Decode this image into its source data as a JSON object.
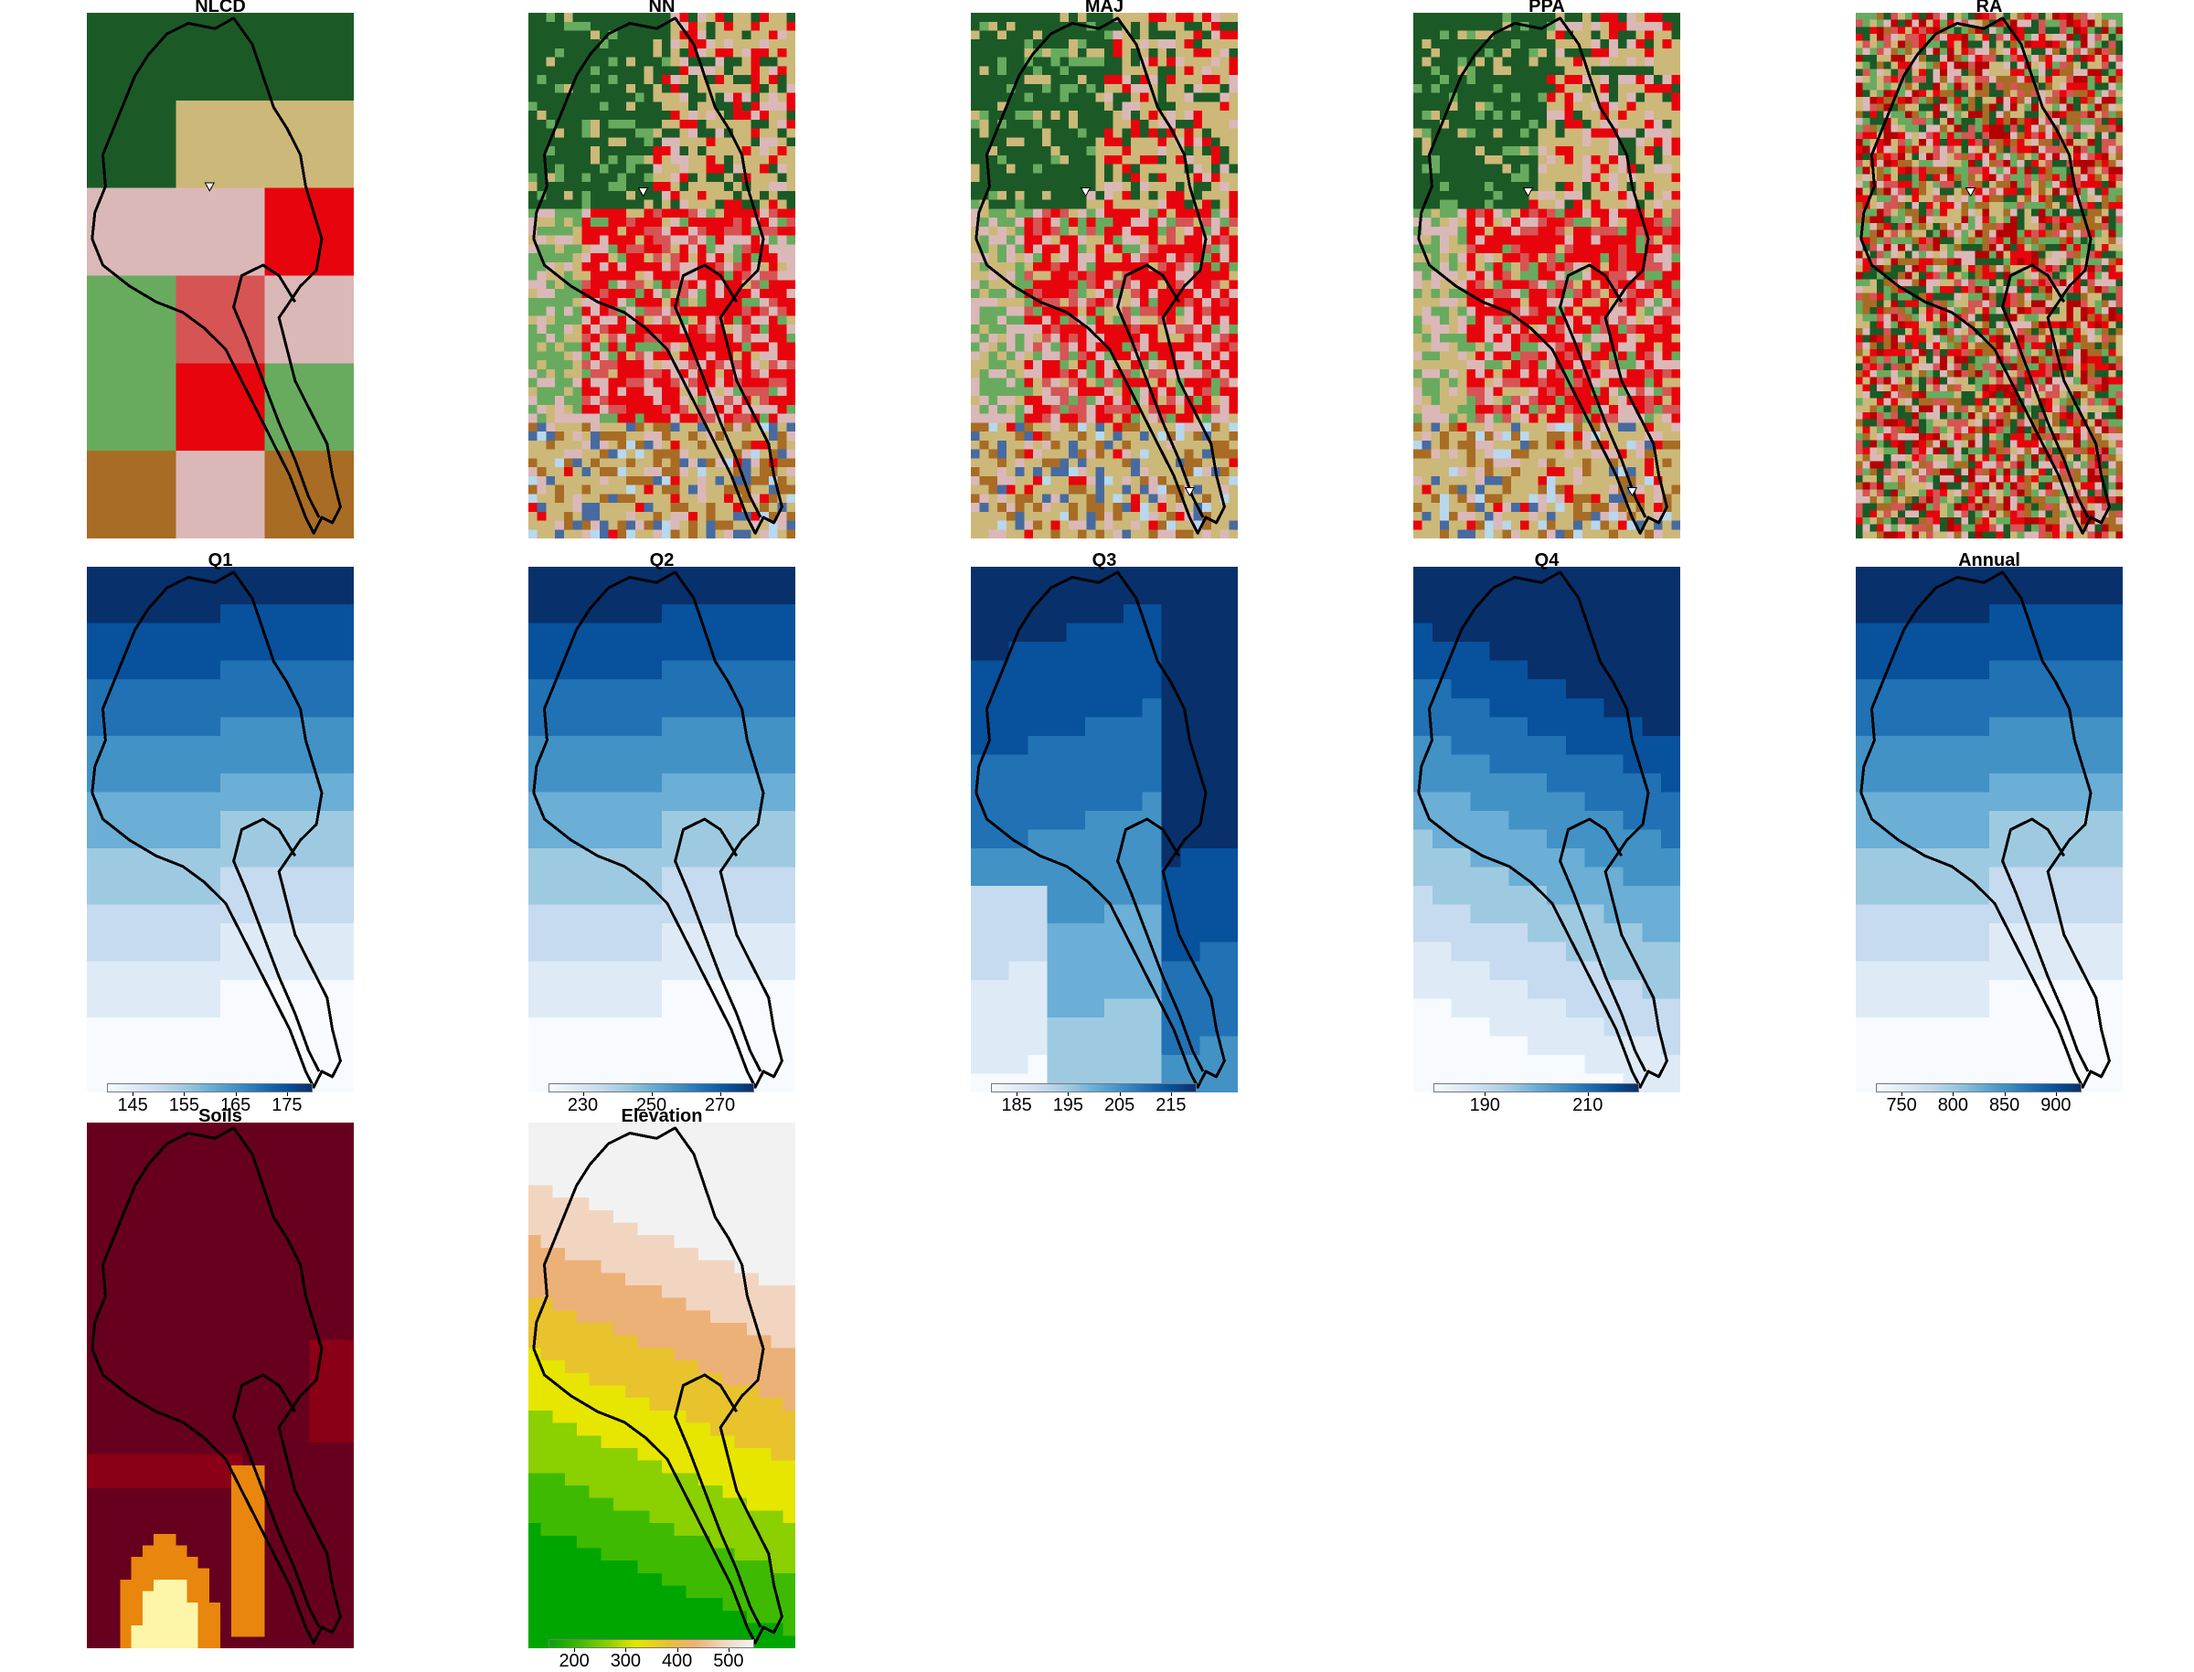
{
  "panels": [
    {
      "id": "nlcd",
      "title": "NLCD",
      "type": "landcover",
      "res": 3,
      "gauges": [
        [
          0.46,
          0.33
        ]
      ]
    },
    {
      "id": "nn",
      "title": "NN",
      "type": "landcover",
      "res": 30,
      "gauges": [
        [
          0.43,
          0.34
        ]
      ]
    },
    {
      "id": "maj",
      "title": "MAJ",
      "type": "landcover",
      "res": 30,
      "gauges": [
        [
          0.43,
          0.34
        ],
        [
          0.82,
          0.91
        ]
      ]
    },
    {
      "id": "ppa",
      "title": "PPA",
      "type": "landcover",
      "res": 30,
      "gauges": [
        [
          0.43,
          0.34
        ],
        [
          0.82,
          0.91
        ]
      ]
    },
    {
      "id": "ra",
      "title": "RA",
      "type": "landcover",
      "res": 38,
      "gauges": [
        [
          0.43,
          0.34
        ]
      ]
    },
    {
      "id": "q1",
      "title": "Q1",
      "type": "precip",
      "dir": 0,
      "legend": {
        "ticks": [
          "145",
          "155",
          "165",
          "175"
        ]
      }
    },
    {
      "id": "q2",
      "title": "Q2",
      "type": "precip",
      "dir": 0,
      "legend": {
        "ticks": [
          "230",
          "250",
          "270"
        ]
      }
    },
    {
      "id": "q3",
      "title": "Q3",
      "type": "precip",
      "dir": 1,
      "legend": {
        "ticks": [
          "185",
          "195",
          "205",
          "215"
        ]
      }
    },
    {
      "id": "q4",
      "title": "Q4",
      "type": "precip",
      "dir": 2,
      "legend": {
        "ticks": [
          "190",
          "210"
        ]
      }
    },
    {
      "id": "annual",
      "title": "Annual",
      "type": "precip",
      "dir": 0,
      "legend": {
        "ticks": [
          "750",
          "800",
          "850",
          "900"
        ]
      }
    },
    {
      "id": "soils",
      "title": "Soils",
      "type": "soils"
    },
    {
      "id": "elevation",
      "title": "Elevation",
      "type": "elevation",
      "legend": {
        "ticks": [
          "200",
          "300",
          "400",
          "500"
        ]
      }
    }
  ],
  "colors": {
    "forest": "#1b5a26",
    "developed_high": "#e8040c",
    "developed_medium": "#d65454",
    "developed_low": "#dbb8b8",
    "developed_veryhigh": "#b40204",
    "grass": "#ccb879",
    "pasture": "#dcd93d",
    "cropland": "#a86c24",
    "wetland": "#b8d8ed",
    "water": "#476ba0",
    "mixed": "#68ab5f",
    "shrub": "#d6c28a",
    "blues": [
      "#f7fbff",
      "#deebf7",
      "#c6dbef",
      "#9ecae1",
      "#6baed6",
      "#4292c6",
      "#2171b5",
      "#08519c",
      "#08306b"
    ],
    "soils": [
      "#67001f",
      "#8b0015",
      "#e8860d",
      "#fdf5a8"
    ],
    "terrain": [
      "#00a600",
      "#3ebb00",
      "#8bd000",
      "#e6e600",
      "#e8c32e",
      "#ecb176",
      "#f2d5c1",
      "#f2f2f2"
    ]
  }
}
